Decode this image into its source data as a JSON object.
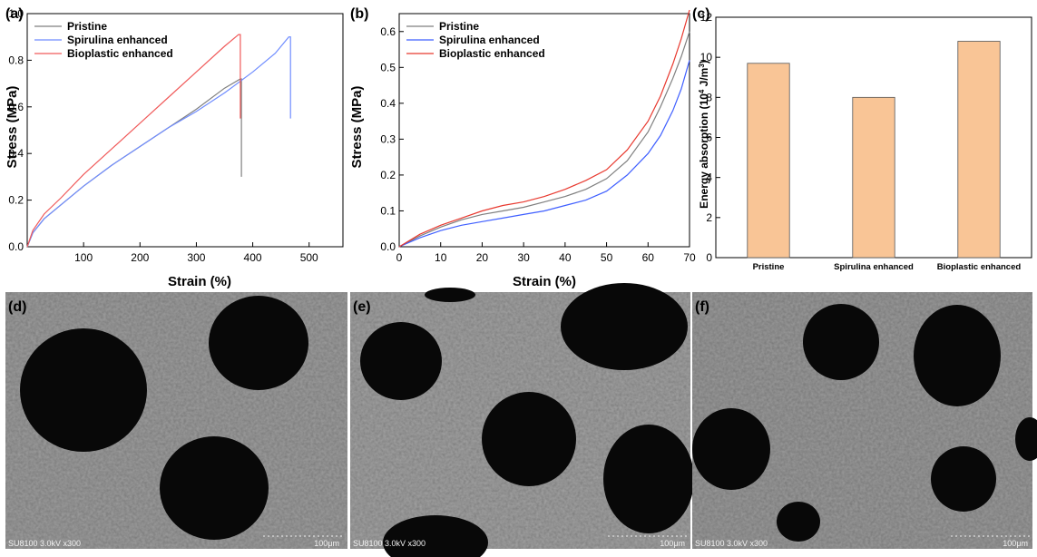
{
  "chart_data": [
    {
      "panel": "(a)",
      "type": "line",
      "xlabel": "Strain (%)",
      "ylabel": "Stress (MPa)",
      "xlim": [
        0,
        560
      ],
      "ylim": [
        0,
        1.0
      ],
      "xticks": [
        100,
        200,
        300,
        400,
        500
      ],
      "yticks": [
        0.0,
        0.2,
        0.4,
        0.6,
        0.8,
        1.0
      ],
      "legend_position": "top-left",
      "series": [
        {
          "name": "Pristine",
          "color": "#7f7f7f",
          "x": [
            0,
            10,
            30,
            60,
            100,
            150,
            200,
            250,
            300,
            350,
            378,
            380,
            380
          ],
          "y": [
            0,
            0.06,
            0.12,
            0.18,
            0.26,
            0.35,
            0.43,
            0.51,
            0.59,
            0.68,
            0.72,
            0.72,
            0.3
          ]
        },
        {
          "name": "Spirulina enhanced",
          "color": "#6f8cff",
          "x": [
            0,
            10,
            30,
            60,
            100,
            150,
            200,
            250,
            300,
            350,
            400,
            440,
            464,
            467,
            467
          ],
          "y": [
            0,
            0.06,
            0.12,
            0.18,
            0.26,
            0.35,
            0.43,
            0.51,
            0.58,
            0.66,
            0.75,
            0.83,
            0.9,
            0.9,
            0.55
          ]
        },
        {
          "name": "Bioplastic enhanced",
          "color": "#f05a5a",
          "x": [
            0,
            10,
            30,
            60,
            100,
            150,
            200,
            250,
            300,
            350,
            375,
            378,
            378
          ],
          "y": [
            0,
            0.07,
            0.14,
            0.21,
            0.31,
            0.42,
            0.53,
            0.64,
            0.75,
            0.86,
            0.91,
            0.91,
            0.55
          ]
        }
      ]
    },
    {
      "panel": "(b)",
      "type": "line",
      "xlabel": "Strain (%)",
      "ylabel": "Stress (MPa)",
      "xlim": [
        0,
        70
      ],
      "ylim": [
        0,
        0.65
      ],
      "xticks": [
        0,
        10,
        20,
        30,
        40,
        50,
        60,
        70
      ],
      "yticks": [
        0.0,
        0.1,
        0.2,
        0.3,
        0.4,
        0.5,
        0.6
      ],
      "legend_position": "top-left",
      "series": [
        {
          "name": "Pristine",
          "color": "#7f7f7f",
          "x": [
            0,
            5,
            10,
            15,
            20,
            25,
            30,
            35,
            40,
            45,
            50,
            55,
            60,
            63,
            66,
            68,
            70
          ],
          "y": [
            0,
            0.03,
            0.055,
            0.075,
            0.09,
            0.1,
            0.11,
            0.125,
            0.14,
            0.16,
            0.19,
            0.24,
            0.32,
            0.39,
            0.47,
            0.53,
            0.6
          ]
        },
        {
          "name": "Spirulina enhanced",
          "color": "#3f5fff",
          "x": [
            0,
            5,
            10,
            15,
            20,
            25,
            30,
            35,
            40,
            45,
            50,
            55,
            60,
            63,
            66,
            68,
            70
          ],
          "y": [
            0,
            0.025,
            0.045,
            0.06,
            0.07,
            0.08,
            0.09,
            0.1,
            0.115,
            0.13,
            0.155,
            0.2,
            0.26,
            0.31,
            0.38,
            0.44,
            0.52
          ]
        },
        {
          "name": "Bioplastic enhanced",
          "color": "#e8392f",
          "x": [
            0,
            5,
            10,
            15,
            20,
            25,
            30,
            35,
            40,
            45,
            50,
            55,
            60,
            63,
            66,
            68,
            70
          ],
          "y": [
            0,
            0.035,
            0.06,
            0.08,
            0.1,
            0.115,
            0.125,
            0.14,
            0.16,
            0.185,
            0.215,
            0.27,
            0.35,
            0.42,
            0.51,
            0.58,
            0.66
          ]
        }
      ]
    },
    {
      "panel": "(c)",
      "type": "bar",
      "categories": [
        "Pristine",
        "Spirulina enhanced",
        "Bioplastic enhanced"
      ],
      "values": [
        9.7,
        8.0,
        10.8
      ],
      "ylabel_main": "Energy absorption (10",
      "ylabel_sup": "4",
      "ylabel_unit": " J/m",
      "ylabel_unit_sup": "3",
      "ylabel_close": ")",
      "ylim": [
        0,
        12
      ],
      "yticks": [
        0,
        2,
        4,
        6,
        8,
        10,
        12
      ],
      "bar_color": "#f9c596"
    }
  ],
  "sem_panels": [
    {
      "label": "(d)",
      "caption_left": "SU8100 3.0kV x300",
      "scale_bar": "100μm"
    },
    {
      "label": "(e)",
      "caption_left": "SU8100 3.0kV x300",
      "scale_bar": "100μm"
    },
    {
      "label": "(f)",
      "caption_left": "SU8100 3.0kV x300",
      "scale_bar": "100μm"
    }
  ],
  "colors": {
    "sem_background": "#9e9e9e",
    "pore": "#080808"
  }
}
